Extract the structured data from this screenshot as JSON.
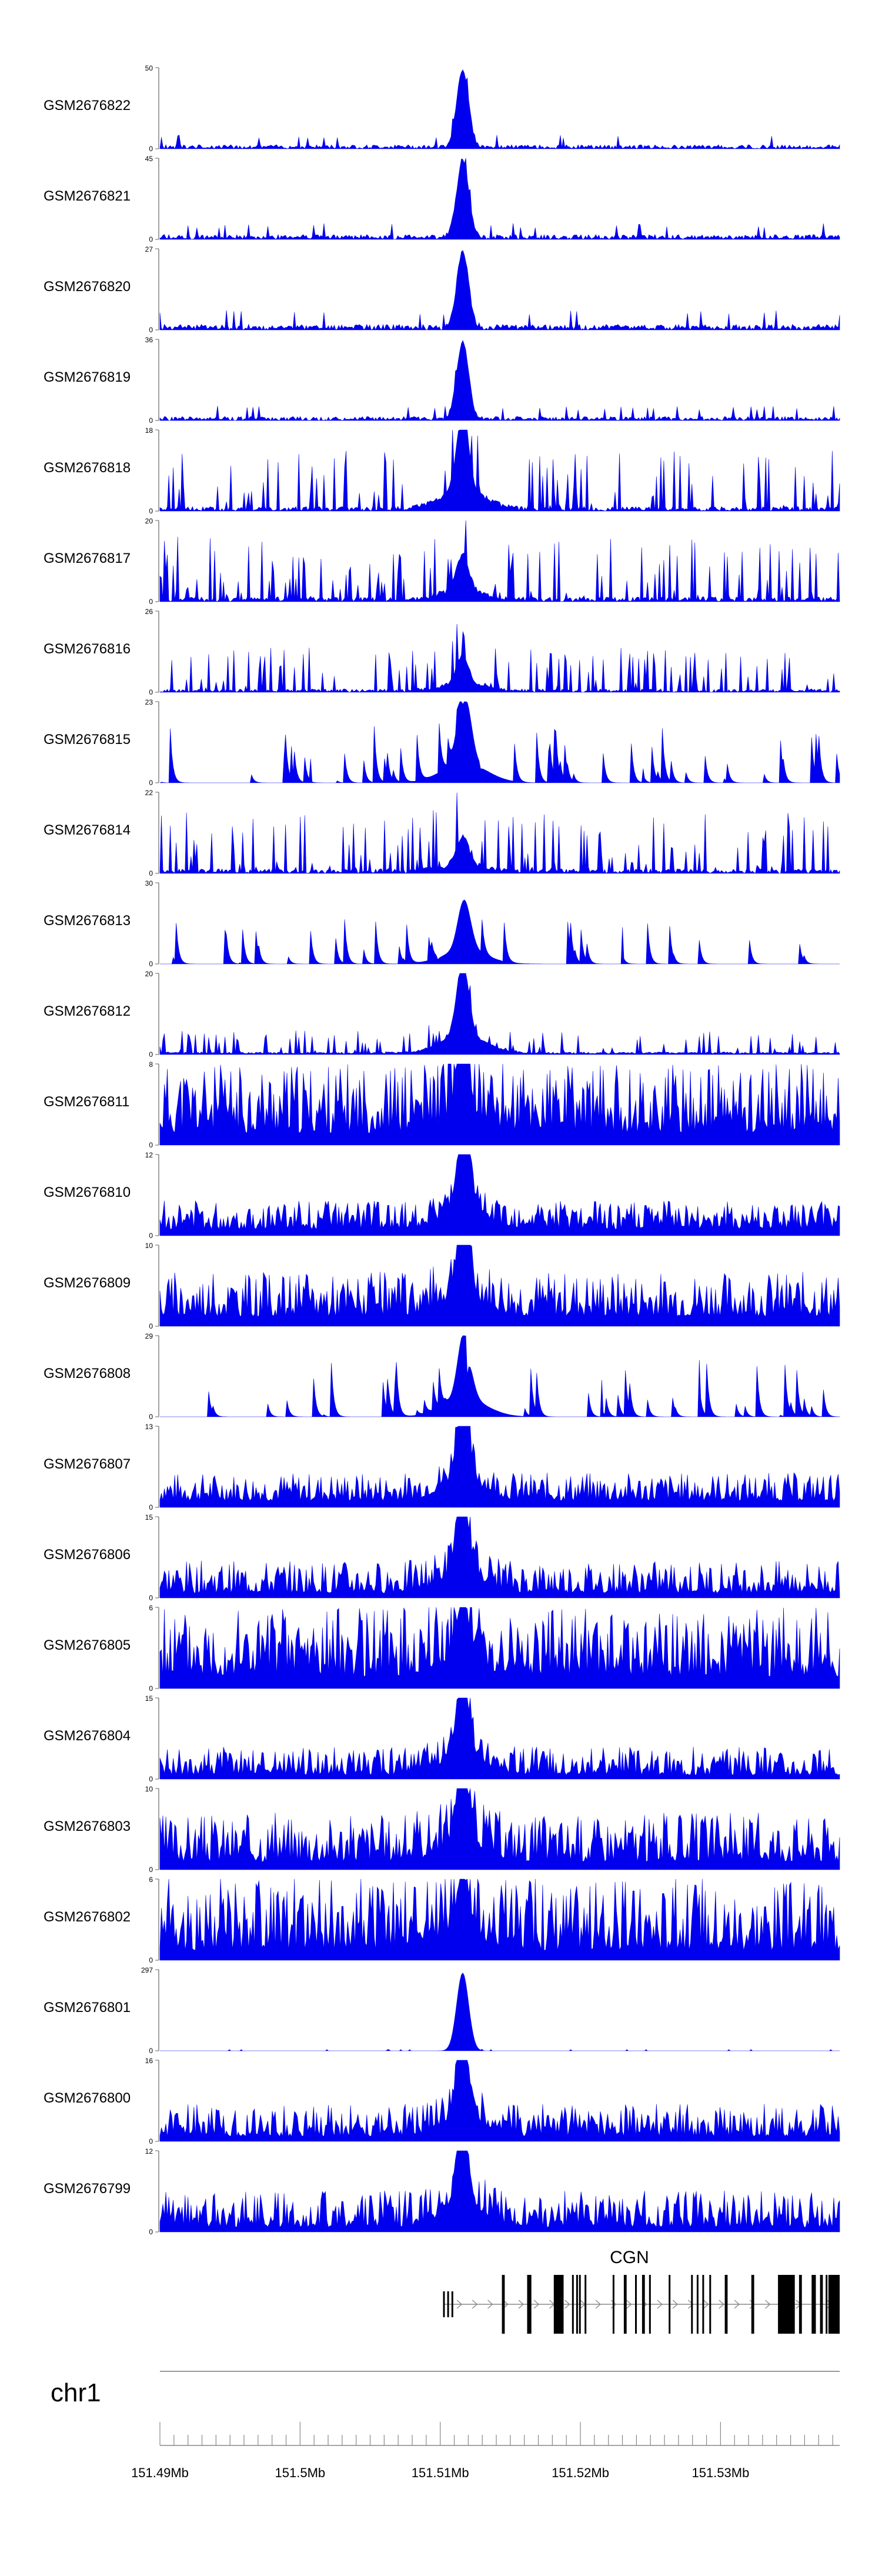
{
  "chart_data": {
    "type": "area",
    "title": "",
    "color": "#0000ee",
    "chromosome": "chr1",
    "xlim": [
      151.49,
      151.5385
    ],
    "x_unit": "Mb",
    "x_ticks": [
      {
        "value": 151.49,
        "label": "151.49Mb"
      },
      {
        "value": 151.5,
        "label": "151.5Mb"
      },
      {
        "value": 151.51,
        "label": "151.51Mb"
      },
      {
        "value": 151.52,
        "label": "151.52Mb"
      },
      {
        "value": 151.53,
        "label": "151.53Mb"
      }
    ],
    "gene": {
      "name": "CGN",
      "strand": "+",
      "start": 151.5102,
      "end": 151.5385,
      "exons": [
        [
          151.5102,
          151.5103
        ],
        [
          151.5105,
          151.5106
        ],
        [
          151.5108,
          151.5109
        ],
        [
          151.5144,
          151.5146
        ],
        [
          151.5162,
          151.5165
        ],
        [
          151.5181,
          151.5188
        ],
        [
          151.5194,
          151.5195
        ],
        [
          151.5197,
          151.5198
        ],
        [
          151.5199,
          151.52
        ],
        [
          151.5203,
          151.5204
        ],
        [
          151.5223,
          151.5224
        ],
        [
          151.5231,
          151.5233
        ],
        [
          151.5239,
          151.524
        ],
        [
          151.5244,
          151.5246
        ],
        [
          151.5249,
          151.525
        ],
        [
          151.5263,
          151.5264
        ],
        [
          151.5279,
          151.528
        ],
        [
          151.5283,
          151.5284
        ],
        [
          151.5287,
          151.5288
        ],
        [
          151.5292,
          151.5293
        ],
        [
          151.5303,
          151.5305
        ],
        [
          151.5322,
          151.5324
        ],
        [
          151.5341,
          151.5353
        ],
        [
          151.5356,
          151.5358
        ],
        [
          151.5365,
          151.5368
        ],
        [
          151.5371,
          151.5373
        ],
        [
          151.5375,
          151.5376
        ],
        [
          151.5377,
          151.5385
        ]
      ]
    },
    "series": [
      {
        "name": "GSM2676822",
        "ymax": "50",
        "style": "sharp",
        "seed": 22,
        "base": 0.05,
        "peak": 0.96,
        "noise": 0.12
      },
      {
        "name": "GSM2676821",
        "ymax": "45",
        "style": "sharp",
        "seed": 21,
        "base": 0.06,
        "peak": 0.96,
        "noise": 0.14
      },
      {
        "name": "GSM2676820",
        "ymax": "27",
        "style": "sharp",
        "seed": 20,
        "base": 0.07,
        "peak": 0.94,
        "noise": 0.18
      },
      {
        "name": "GSM2676819",
        "ymax": "36",
        "style": "sharp",
        "seed": 19,
        "base": 0.05,
        "peak": 0.95,
        "noise": 0.13
      },
      {
        "name": "GSM2676818",
        "ymax": "18",
        "style": "spiky",
        "seed": 18,
        "base": 0.0,
        "peak": 0.95,
        "noise": 0.75
      },
      {
        "name": "GSM2676817",
        "ymax": "20",
        "style": "spiky",
        "seed": 17,
        "base": 0.0,
        "peak": 0.45,
        "noise": 0.8
      },
      {
        "name": "GSM2676816",
        "ymax": "26",
        "style": "spiky",
        "seed": 16,
        "base": 0.0,
        "peak": 0.35,
        "noise": 0.55
      },
      {
        "name": "GSM2676815",
        "ymax": "23",
        "style": "sparse",
        "seed": 15,
        "base": 0.0,
        "peak": 0.45,
        "noise": 0.7
      },
      {
        "name": "GSM2676814",
        "ymax": "22",
        "style": "spiky",
        "seed": 14,
        "base": 0.0,
        "peak": 0.35,
        "noise": 0.75
      },
      {
        "name": "GSM2676813",
        "ymax": "30",
        "style": "sparse",
        "seed": 13,
        "base": 0.0,
        "peak": 0.3,
        "noise": 0.55
      },
      {
        "name": "GSM2676812",
        "ymax": "20",
        "style": "spiky",
        "seed": 12,
        "base": 0.03,
        "peak": 0.9,
        "noise": 0.3
      },
      {
        "name": "GSM2676811",
        "ymax": "8",
        "style": "dense",
        "seed": 11,
        "base": 0.15,
        "peak": 0.85,
        "noise": 0.85
      },
      {
        "name": "GSM2676810",
        "ymax": "12",
        "style": "dense",
        "seed": 10,
        "base": 0.08,
        "peak": 0.9,
        "noise": 0.35
      },
      {
        "name": "GSM2676809",
        "ymax": "10",
        "style": "dense",
        "seed": 9,
        "base": 0.12,
        "peak": 0.95,
        "noise": 0.55
      },
      {
        "name": "GSM2676808",
        "ymax": "29",
        "style": "sparse",
        "seed": 8,
        "base": 0.0,
        "peak": 0.4,
        "noise": 0.7
      },
      {
        "name": "GSM2676807",
        "ymax": "13",
        "style": "dense",
        "seed": 7,
        "base": 0.08,
        "peak": 0.95,
        "noise": 0.35
      },
      {
        "name": "GSM2676806",
        "ymax": "15",
        "style": "dense",
        "seed": 6,
        "base": 0.06,
        "peak": 0.95,
        "noise": 0.4
      },
      {
        "name": "GSM2676805",
        "ymax": "6",
        "style": "dense",
        "seed": 5,
        "base": 0.15,
        "peak": 0.75,
        "noise": 0.85
      },
      {
        "name": "GSM2676804",
        "ymax": "15",
        "style": "dense",
        "seed": 4,
        "base": 0.05,
        "peak": 0.95,
        "noise": 0.35
      },
      {
        "name": "GSM2676803",
        "ymax": "10",
        "style": "dense",
        "seed": 3,
        "base": 0.1,
        "peak": 0.95,
        "noise": 0.6
      },
      {
        "name": "GSM2676802",
        "ymax": "6",
        "style": "dense",
        "seed": 2,
        "base": 0.12,
        "peak": 0.75,
        "noise": 0.9
      },
      {
        "name": "GSM2676801",
        "ymax": "297",
        "style": "sharp",
        "seed": 1,
        "base": 0.0,
        "peak": 0.96,
        "noise": 0.015
      },
      {
        "name": "GSM2676800",
        "ymax": "16",
        "style": "dense",
        "seed": 100,
        "base": 0.06,
        "peak": 0.95,
        "noise": 0.4
      },
      {
        "name": "GSM2676799",
        "ymax": "12",
        "style": "dense",
        "seed": 99,
        "base": 0.06,
        "peak": 0.95,
        "noise": 0.45
      }
    ]
  }
}
